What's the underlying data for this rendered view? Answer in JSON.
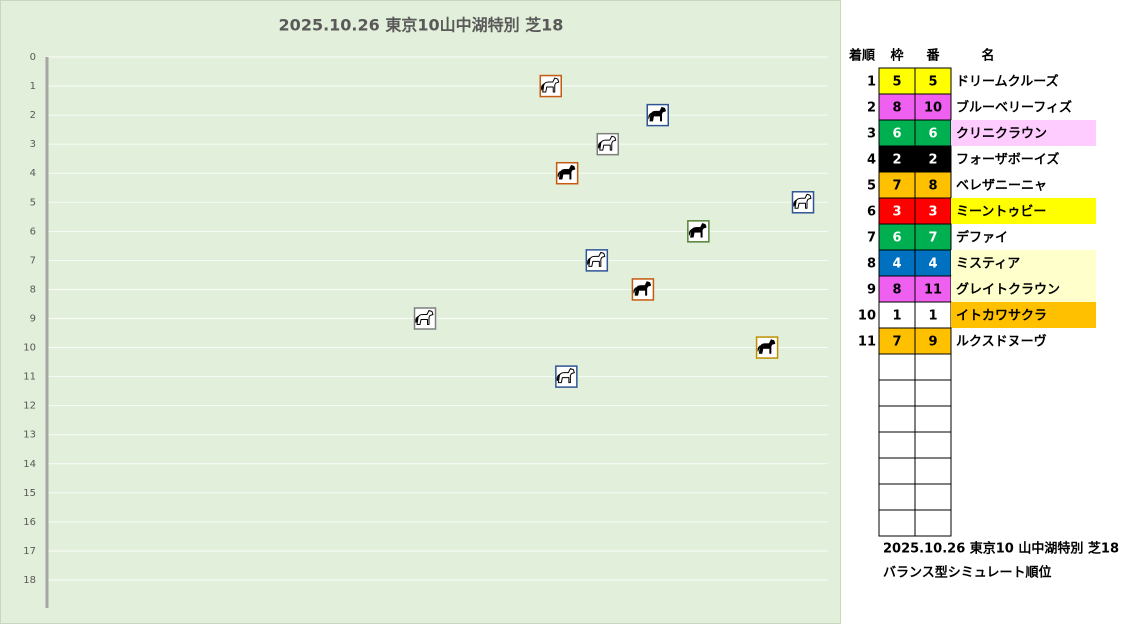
{
  "chart_data": {
    "type": "scatter",
    "title": "2025.10.26 東京10山中湖特別 芝18",
    "x": [
      64.5,
      78.2,
      71.8,
      66.6,
      96.8,
      83.4,
      70.4,
      76.3,
      48.4,
      92.2,
      66.5
    ],
    "values": [
      1,
      2,
      3,
      4,
      5,
      6,
      7,
      8,
      9,
      10,
      11
    ],
    "xlim": [
      0,
      100
    ],
    "ylim": [
      18,
      0
    ],
    "yticks": [
      0,
      1,
      2,
      3,
      4,
      5,
      6,
      7,
      8,
      9,
      10,
      11,
      12,
      13,
      14,
      15,
      16,
      17,
      18
    ],
    "grid": true,
    "border_colors": [
      "#c55a11",
      "#2f5597",
      "#7f7f7f",
      "#c55a11",
      "#2f5597",
      "#548235",
      "#2f5597",
      "#c55a11",
      "#7f7f7f",
      "#bf9000",
      "#2f5597"
    ],
    "icon_dark": [
      false,
      true,
      false,
      true,
      false,
      true,
      false,
      true,
      false,
      true,
      false
    ]
  },
  "table": {
    "headers": [
      "着順",
      "枠",
      "番",
      "名"
    ],
    "rows": [
      {
        "rank": "1",
        "frame": "5",
        "num": "5",
        "name": "ドリームクルーズ"
      },
      {
        "rank": "2",
        "frame": "8",
        "num": "10",
        "name": "ブルーベリーフィズ"
      },
      {
        "rank": "3",
        "frame": "6",
        "num": "6",
        "name": "クリニクラウン",
        "highlight": "#ffccff"
      },
      {
        "rank": "4",
        "frame": "2",
        "num": "2",
        "name": "フォーザボーイズ"
      },
      {
        "rank": "5",
        "frame": "7",
        "num": "8",
        "name": "ベレザニーニャ"
      },
      {
        "rank": "6",
        "frame": "3",
        "num": "3",
        "name": "ミーントゥビー",
        "highlight": "#ffff00"
      },
      {
        "rank": "7",
        "frame": "6",
        "num": "7",
        "name": "デファイ"
      },
      {
        "rank": "8",
        "frame": "4",
        "num": "4",
        "name": "ミスティア",
        "highlight": "#ffffcc"
      },
      {
        "rank": "9",
        "frame": "8",
        "num": "11",
        "name": "グレイトクラウン",
        "highlight": "#ffffcc"
      },
      {
        "rank": "10",
        "frame": "1",
        "num": "1",
        "name": "イトカワサクラ",
        "highlight": "#ffc000"
      },
      {
        "rank": "11",
        "frame": "7",
        "num": "9",
        "name": "ルクスドヌーヴ"
      }
    ],
    "frame_colors": {
      "1": [
        "#ffffff",
        "#000000"
      ],
      "2": [
        "#000000",
        "#ffffff"
      ],
      "3": [
        "#ff0000",
        "#ffffff"
      ],
      "4": [
        "#0070c0",
        "#ffffff"
      ],
      "5": [
        "#ffff00",
        "#000000"
      ],
      "6": [
        "#00b050",
        "#ffffff"
      ],
      "7": [
        "#ffc000",
        "#000000"
      ],
      "8": [
        "#f060f0",
        "#000000"
      ]
    },
    "footer": [
      "2025.10.26 東京10 山中湖特別 芝18",
      "バランス型シミュレート順位"
    ]
  }
}
